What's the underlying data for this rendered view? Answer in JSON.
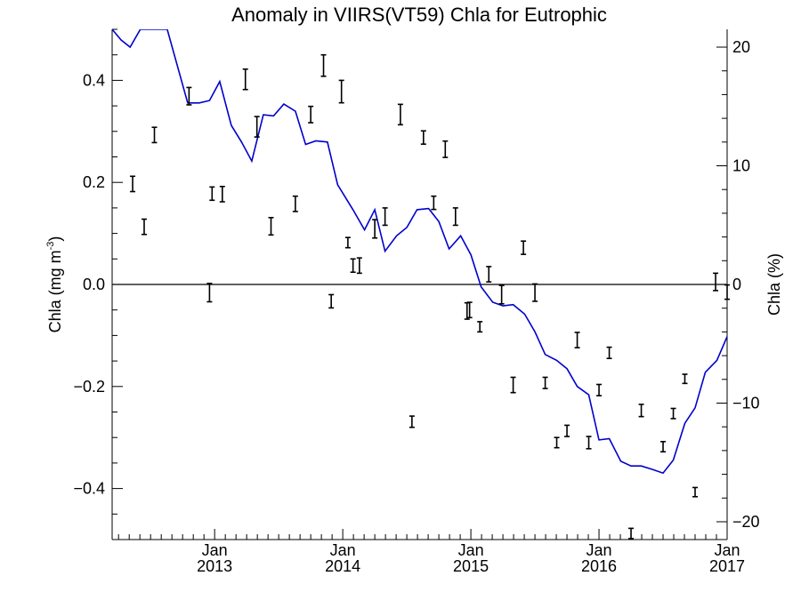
{
  "chart_data": {
    "type": "line",
    "title": "Anomaly in VIIRS(VT59) Chla for Eutrophic",
    "ylabel_left": {
      "main": "Chla (mg m",
      "sup": "-3",
      "end": ")"
    },
    "ylabel_right": "Chla (%)",
    "ylim_left": [
      -0.5,
      0.5
    ],
    "ylim_right": [
      -21.5,
      21.5
    ],
    "xlim": [
      2012.2,
      2017.0
    ],
    "yticks_left": [
      {
        "v": 0.4,
        "label": "0.4"
      },
      {
        "v": 0.2,
        "label": "0.2"
      },
      {
        "v": 0.0,
        "label": "0.0"
      },
      {
        "v": -0.2,
        "label": "−0.2"
      },
      {
        "v": -0.4,
        "label": "−0.4"
      }
    ],
    "yticks_right": [
      {
        "v": 20,
        "label": "20"
      },
      {
        "v": 10,
        "label": "10"
      },
      {
        "v": 0,
        "label": "0"
      },
      {
        "v": -10,
        "label": "−10"
      },
      {
        "v": -20,
        "label": "−20"
      }
    ],
    "xticks": [
      {
        "v": 2013.0,
        "month": "Jan",
        "year": "2013"
      },
      {
        "v": 2014.0,
        "month": "Jan",
        "year": "2014"
      },
      {
        "v": 2015.0,
        "month": "Jan",
        "year": "2015"
      },
      {
        "v": 2016.0,
        "month": "Jan",
        "year": "2016"
      },
      {
        "v": 2017.0,
        "month": "Jan",
        "year": "2017"
      }
    ],
    "zero_line": 0.0,
    "series": [
      {
        "type": "line",
        "axis": "right",
        "color": "#0000cc",
        "x": [
          2012.2,
          2012.27,
          2012.34,
          2012.42,
          2012.54,
          2012.63,
          2012.79,
          2012.88,
          2012.96,
          2013.04,
          2013.13,
          2013.21,
          2013.29,
          2013.38,
          2013.46,
          2013.54,
          2013.63,
          2013.71,
          2013.79,
          2013.88,
          2013.96,
          2014.0,
          2014.08,
          2014.17,
          2014.25,
          2014.33,
          2014.42,
          2014.5,
          2014.58,
          2014.67,
          2014.75,
          2014.83,
          2014.92,
          2015.0,
          2015.08,
          2015.17,
          2015.25,
          2015.33,
          2015.42,
          2015.5,
          2015.58,
          2015.67,
          2015.75,
          2015.83,
          2015.92,
          2016.0,
          2016.08,
          2016.17,
          2016.25,
          2016.33,
          2016.42,
          2016.5,
          2016.58,
          2016.67,
          2016.75,
          2016.83,
          2016.92,
          2017.0
        ],
        "y": [
          21.5,
          20.6,
          20.0,
          21.5,
          21.5,
          21.5,
          15.3,
          15.3,
          15.5,
          17.1,
          13.4,
          12.0,
          10.4,
          14.3,
          14.2,
          15.2,
          14.6,
          11.8,
          12.1,
          12.0,
          8.4,
          7.7,
          6.3,
          4.6,
          6.3,
          2.8,
          4.1,
          4.8,
          6.3,
          6.4,
          5.3,
          3.0,
          4.1,
          2.5,
          -0.2,
          -1.5,
          -1.8,
          -1.7,
          -2.5,
          -4.0,
          -5.9,
          -6.4,
          -7.1,
          -8.6,
          -9.3,
          -13.1,
          -13.0,
          -14.9,
          -15.3,
          -15.3,
          -15.6,
          -15.9,
          -14.8,
          -11.7,
          -10.4,
          -7.4,
          -6.4,
          -4.4
        ]
      },
      {
        "type": "errorbar",
        "axis": "left",
        "color": "#000000",
        "points": [
          {
            "x": 2012.36,
            "y": 0.197,
            "err": 0.015
          },
          {
            "x": 2012.45,
            "y": 0.113,
            "err": 0.015
          },
          {
            "x": 2012.53,
            "y": 0.293,
            "err": 0.015
          },
          {
            "x": 2012.8,
            "y": 0.369,
            "err": 0.017
          },
          {
            "x": 2012.96,
            "y": -0.016,
            "err": 0.018
          },
          {
            "x": 2012.98,
            "y": 0.178,
            "err": 0.013
          },
          {
            "x": 2013.06,
            "y": 0.177,
            "err": 0.015
          },
          {
            "x": 2013.24,
            "y": 0.402,
            "err": 0.02
          },
          {
            "x": 2013.33,
            "y": 0.309,
            "err": 0.02
          },
          {
            "x": 2013.44,
            "y": 0.114,
            "err": 0.017
          },
          {
            "x": 2013.63,
            "y": 0.158,
            "err": 0.015
          },
          {
            "x": 2013.75,
            "y": 0.333,
            "err": 0.016
          },
          {
            "x": 2013.85,
            "y": 0.429,
            "err": 0.021
          },
          {
            "x": 2013.91,
            "y": -0.033,
            "err": 0.013
          },
          {
            "x": 2013.99,
            "y": 0.378,
            "err": 0.022
          },
          {
            "x": 2014.04,
            "y": 0.082,
            "err": 0.01
          },
          {
            "x": 2014.08,
            "y": 0.037,
            "err": 0.013
          },
          {
            "x": 2014.13,
            "y": 0.037,
            "err": 0.015
          },
          {
            "x": 2014.25,
            "y": 0.109,
            "err": 0.018
          },
          {
            "x": 2014.33,
            "y": 0.133,
            "err": 0.017
          },
          {
            "x": 2014.45,
            "y": 0.333,
            "err": 0.02
          },
          {
            "x": 2014.54,
            "y": -0.269,
            "err": 0.011
          },
          {
            "x": 2014.63,
            "y": 0.288,
            "err": 0.013
          },
          {
            "x": 2014.71,
            "y": 0.16,
            "err": 0.013
          },
          {
            "x": 2014.8,
            "y": 0.265,
            "err": 0.016
          },
          {
            "x": 2014.88,
            "y": 0.133,
            "err": 0.017
          },
          {
            "x": 2014.97,
            "y": -0.052,
            "err": 0.016
          },
          {
            "x": 2014.99,
            "y": -0.05,
            "err": 0.015
          },
          {
            "x": 2015.07,
            "y": -0.083,
            "err": 0.01
          },
          {
            "x": 2015.14,
            "y": 0.02,
            "err": 0.015
          },
          {
            "x": 2015.24,
            "y": -0.02,
            "err": 0.018
          },
          {
            "x": 2015.33,
            "y": -0.197,
            "err": 0.015
          },
          {
            "x": 2015.41,
            "y": 0.072,
            "err": 0.013
          },
          {
            "x": 2015.5,
            "y": -0.016,
            "err": 0.017
          },
          {
            "x": 2015.58,
            "y": -0.193,
            "err": 0.011
          },
          {
            "x": 2015.67,
            "y": -0.31,
            "err": 0.01
          },
          {
            "x": 2015.75,
            "y": -0.287,
            "err": 0.011
          },
          {
            "x": 2015.83,
            "y": -0.109,
            "err": 0.015
          },
          {
            "x": 2015.92,
            "y": -0.31,
            "err": 0.012
          },
          {
            "x": 2016.0,
            "y": -0.207,
            "err": 0.011
          },
          {
            "x": 2016.08,
            "y": -0.134,
            "err": 0.011
          },
          {
            "x": 2016.25,
            "y": -0.488,
            "err": 0.01
          },
          {
            "x": 2016.33,
            "y": -0.247,
            "err": 0.012
          },
          {
            "x": 2016.5,
            "y": -0.318,
            "err": 0.01
          },
          {
            "x": 2016.58,
            "y": -0.253,
            "err": 0.01
          },
          {
            "x": 2016.67,
            "y": -0.185,
            "err": 0.009
          },
          {
            "x": 2016.75,
            "y": -0.407,
            "err": 0.009
          },
          {
            "x": 2016.91,
            "y": 0.005,
            "err": 0.017
          },
          {
            "x": 2017.0,
            "y": -0.015,
            "err": 0.014
          }
        ]
      }
    ]
  }
}
